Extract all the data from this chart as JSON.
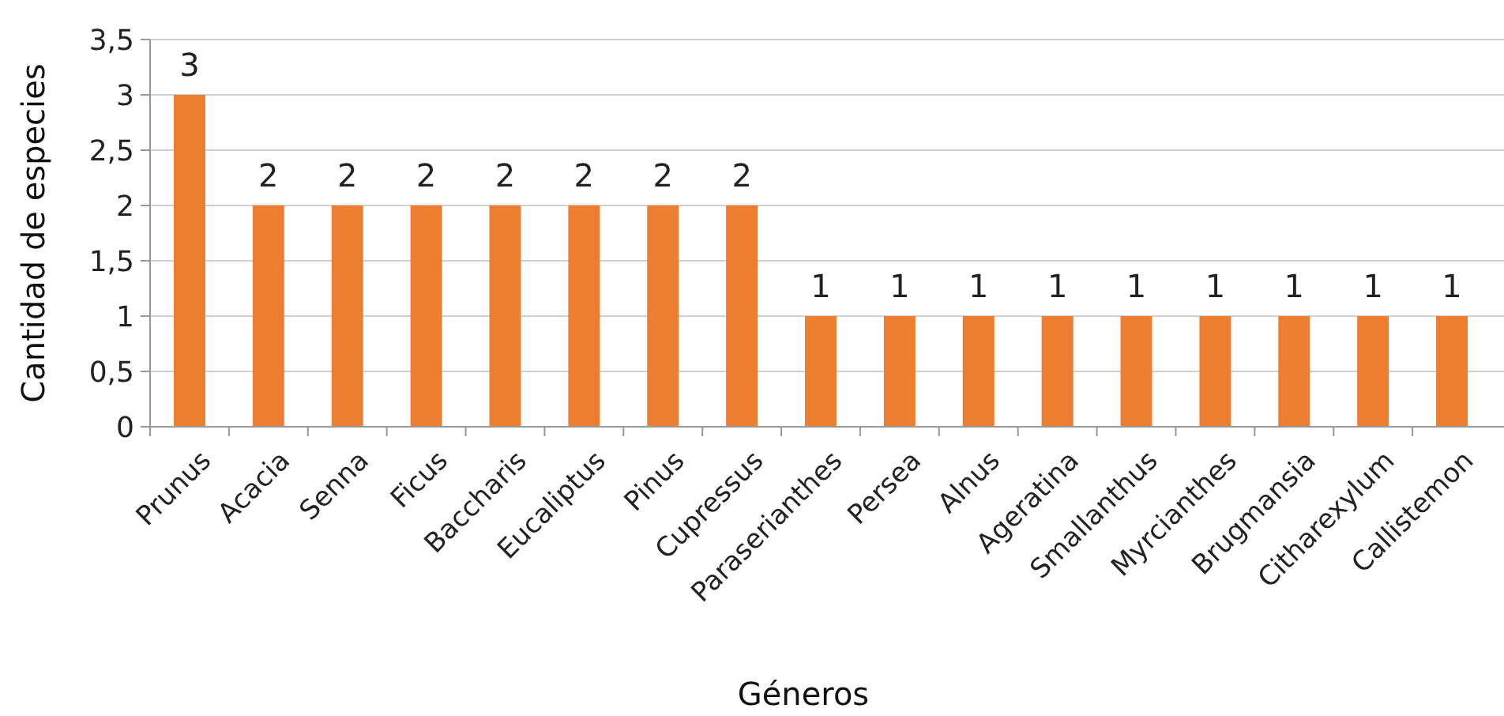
{
  "chart_data": {
    "type": "bar",
    "xlabel": "Géneros",
    "ylabel": "Cantidad de especies",
    "categories": [
      "Prunus",
      "Acacia",
      "Senna",
      "Ficus",
      "Baccharis",
      "Eucaliptus",
      "Pinus",
      "Cupressus",
      "Paraserianthes",
      "Persea",
      "Alnus",
      "Ageratina",
      "Smallanthus",
      "Myrcianthes",
      "Brugmansia",
      "Citharexylum",
      "Callistemon"
    ],
    "values": [
      3,
      2,
      2,
      2,
      2,
      2,
      2,
      2,
      1,
      1,
      1,
      1,
      1,
      1,
      1,
      1,
      1
    ],
    "color": "#ed7d31",
    "ylim": [
      0,
      3.5
    ],
    "yticks": [
      0,
      {
        "value": 0.5,
        "label": "0,5"
      },
      1,
      {
        "value": 1.5,
        "label": "1,5"
      },
      2,
      {
        "value": 2.5,
        "label": "2,5"
      },
      3,
      {
        "value": 3.5,
        "label": "3,5"
      }
    ],
    "grid": "y",
    "data_labels": true
  }
}
